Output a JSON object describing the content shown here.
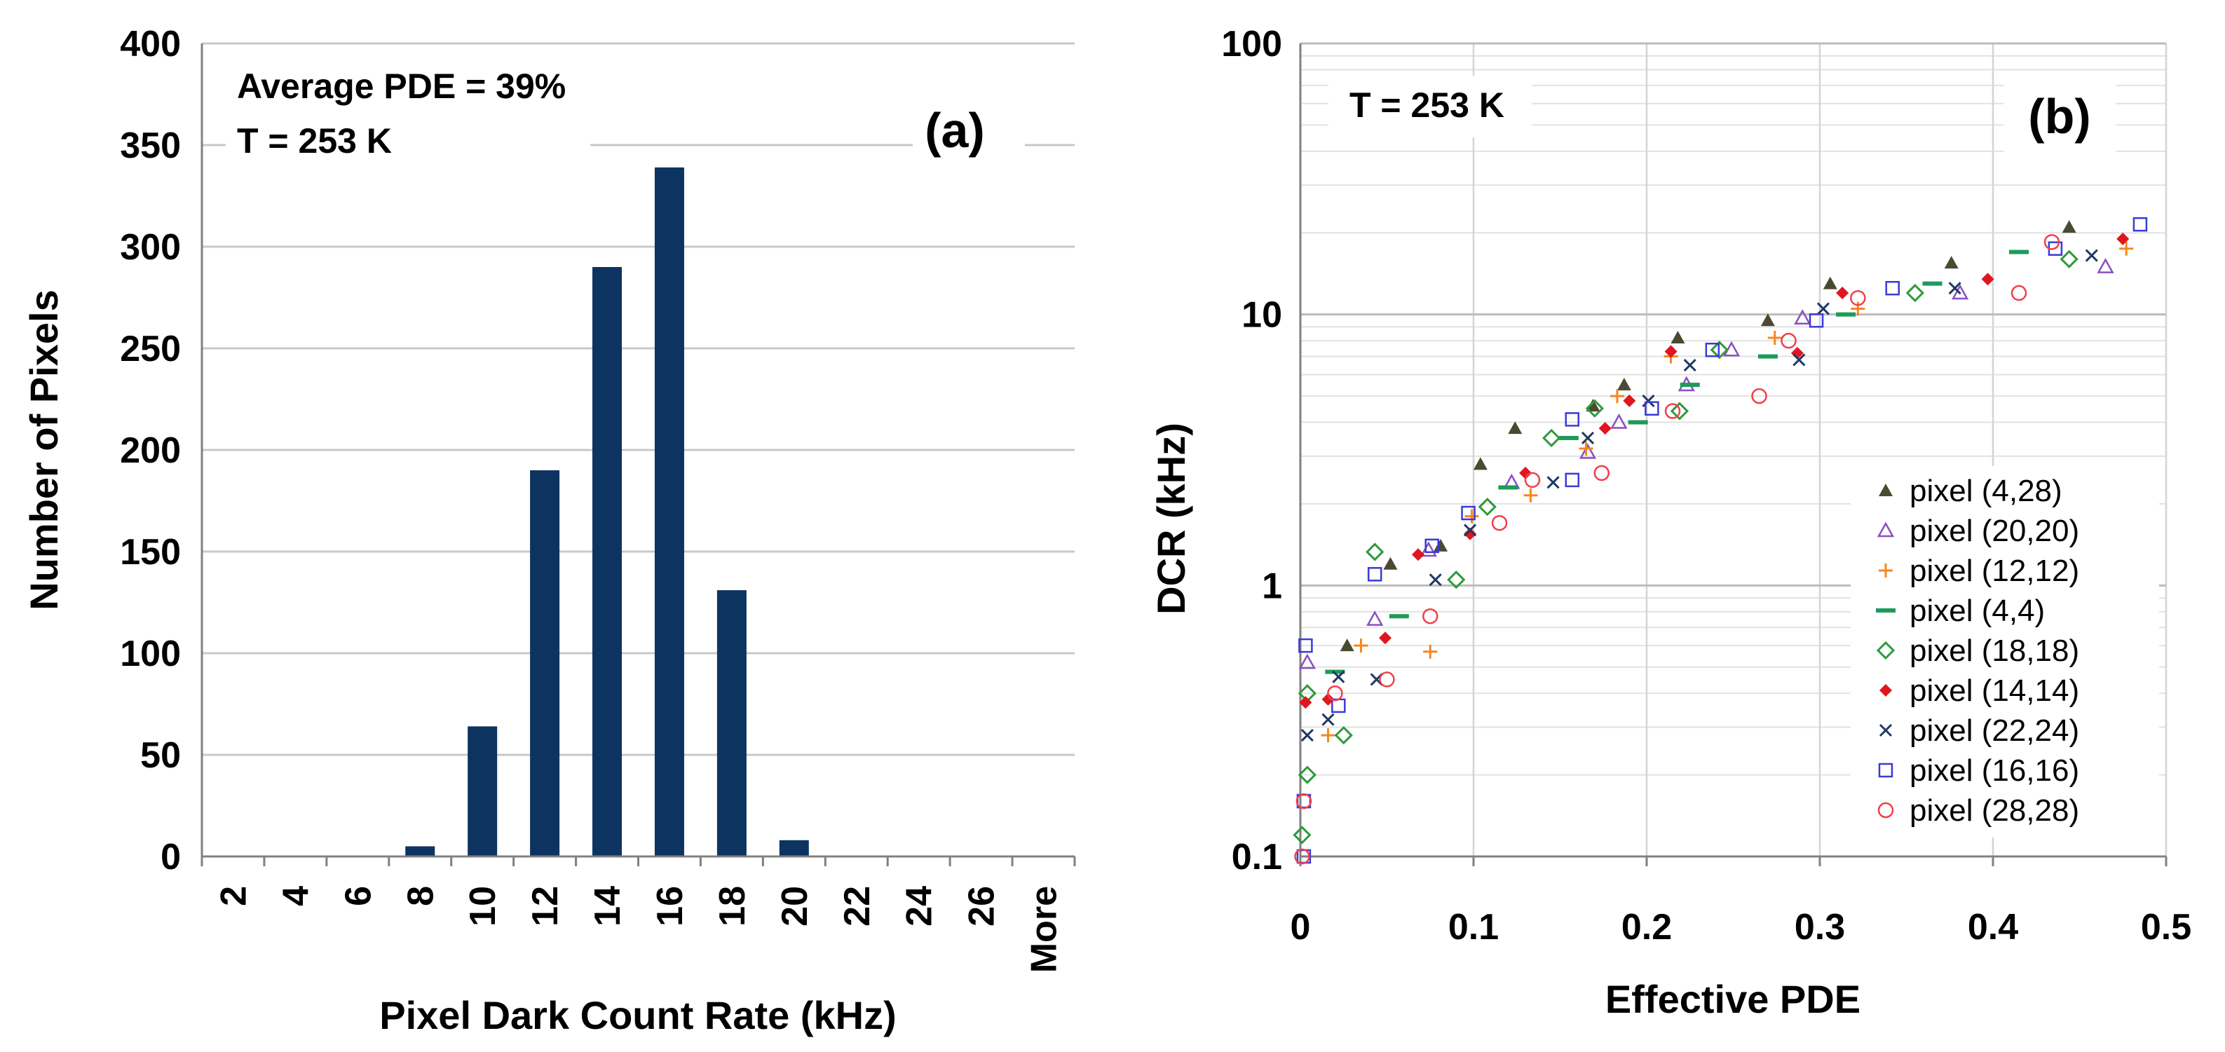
{
  "colors": {
    "bar": "#0d3361",
    "grid": "#c8c8c8",
    "axis": "#808080",
    "text": "#000000"
  },
  "chart_data": [
    {
      "type": "bar",
      "panel_label": "(a)",
      "xlabel": "Pixel Dark Count Rate (kHz)",
      "ylabel": "Number of Pixels",
      "ylim": [
        0,
        400
      ],
      "y_ticks": [
        "0",
        "50",
        "100",
        "150",
        "200",
        "250",
        "300",
        "350",
        "400"
      ],
      "y_tick_values": [
        0,
        50,
        100,
        150,
        200,
        250,
        300,
        350,
        400
      ],
      "categories": [
        "2",
        "4",
        "6",
        "8",
        "10",
        "12",
        "14",
        "16",
        "18",
        "20",
        "22",
        "24",
        "26",
        "More"
      ],
      "values": [
        0,
        0,
        0,
        5,
        64,
        190,
        290,
        339,
        131,
        8,
        0,
        0,
        0,
        0
      ],
      "grid": true,
      "annotations": [
        "Average PDE = 39%",
        "T = 253 K"
      ]
    },
    {
      "type": "scatter",
      "panel_label": "(b)",
      "xlabel": "Effective PDE",
      "ylabel": "DCR (kHz)",
      "yscale": "log",
      "xlim": [
        0,
        0.5
      ],
      "ylim": [
        0.1,
        100
      ],
      "x_ticks": [
        "0",
        "0.1",
        "0.2",
        "0.3",
        "0.4",
        "0.5"
      ],
      "x_tick_values": [
        0,
        0.1,
        0.2,
        0.3,
        0.4,
        0.5
      ],
      "y_ticks": [
        "0.1",
        "1",
        "10",
        "100"
      ],
      "y_tick_values": [
        0.1,
        1,
        10,
        100
      ],
      "grid": true,
      "legend_position": "bottom-right",
      "annotations": [
        "T = 253 K"
      ],
      "series": [
        {
          "name": "pixel (4,28)",
          "marker": "triangle",
          "color": "#4a4a32",
          "x": [
            0.027,
            0.052,
            0.081,
            0.104,
            0.124,
            0.169,
            0.187,
            0.218,
            0.27,
            0.306,
            0.376,
            0.444
          ],
          "y": [
            0.6,
            1.2,
            1.4,
            2.8,
            3.8,
            4.6,
            5.5,
            8.2,
            9.5,
            13.0,
            15.5,
            21.0
          ]
        },
        {
          "name": "pixel (20,20)",
          "marker": "triangle-open",
          "color": "#8a4fc0",
          "x": [
            0.004,
            0.043,
            0.074,
            0.122,
            0.166,
            0.184,
            0.223,
            0.249,
            0.29,
            0.381,
            0.465
          ],
          "y": [
            0.52,
            0.75,
            1.35,
            2.4,
            3.1,
            4.0,
            5.5,
            7.4,
            9.7,
            12.0,
            15.0
          ]
        },
        {
          "name": "pixel (12,12)",
          "marker": "plus",
          "color": "#f4871f",
          "x": [
            0.016,
            0.035,
            0.075,
            0.099,
            0.133,
            0.165,
            0.183,
            0.214,
            0.274,
            0.322,
            0.477
          ],
          "y": [
            0.28,
            0.6,
            0.57,
            1.8,
            2.15,
            3.2,
            5.0,
            7.0,
            8.2,
            10.5,
            17.5
          ]
        },
        {
          "name": "pixel (4,4)",
          "marker": "dash",
          "color": "#1e9a5a",
          "x": [
            0.02,
            0.057,
            0.12,
            0.155,
            0.195,
            0.225,
            0.27,
            0.315,
            0.365,
            0.415
          ],
          "y": [
            0.48,
            0.77,
            2.3,
            3.5,
            4.0,
            5.5,
            7.0,
            10.0,
            13.0,
            17.0
          ]
        },
        {
          "name": "pixel (18,18)",
          "marker": "diamond-open",
          "color": "#2e9a3c",
          "x": [
            0.001,
            0.004,
            0.004,
            0.025,
            0.043,
            0.09,
            0.108,
            0.145,
            0.17,
            0.219,
            0.242,
            0.355,
            0.444
          ],
          "y": [
            0.12,
            0.2,
            0.4,
            0.28,
            1.33,
            1.05,
            1.95,
            3.5,
            4.5,
            4.4,
            7.4,
            12.0,
            16.0
          ]
        },
        {
          "name": "pixel (14,14)",
          "marker": "diamond",
          "color": "#e0161e",
          "x": [
            0.003,
            0.016,
            0.049,
            0.068,
            0.098,
            0.13,
            0.176,
            0.19,
            0.214,
            0.287,
            0.313,
            0.397,
            0.475
          ],
          "y": [
            0.37,
            0.38,
            0.64,
            1.3,
            1.55,
            2.6,
            3.8,
            4.8,
            7.3,
            7.2,
            12.0,
            13.5,
            19.0
          ]
        },
        {
          "name": "pixel (22,24)",
          "marker": "x",
          "color": "#1f3864",
          "x": [
            0.004,
            0.016,
            0.022,
            0.044,
            0.078,
            0.098,
            0.146,
            0.166,
            0.201,
            0.225,
            0.288,
            0.302,
            0.378,
            0.457
          ],
          "y": [
            0.28,
            0.32,
            0.46,
            0.45,
            1.05,
            1.6,
            2.4,
            3.5,
            4.8,
            6.5,
            6.8,
            10.5,
            12.5,
            16.5
          ]
        },
        {
          "name": "pixel (16,16)",
          "marker": "square-open",
          "color": "#3a3ad8",
          "x": [
            0.002,
            0.002,
            0.003,
            0.022,
            0.043,
            0.076,
            0.097,
            0.157,
            0.157,
            0.203,
            0.238,
            0.298,
            0.342,
            0.436,
            0.485
          ],
          "y": [
            0.1,
            0.16,
            0.6,
            0.36,
            1.1,
            1.4,
            1.85,
            4.1,
            2.45,
            4.5,
            7.4,
            9.5,
            12.5,
            17.5,
            21.5
          ]
        },
        {
          "name": "pixel (28,28)",
          "marker": "circle-open",
          "color": "#f0404a",
          "x": [
            0.001,
            0.002,
            0.02,
            0.05,
            0.075,
            0.115,
            0.134,
            0.174,
            0.215,
            0.265,
            0.282,
            0.322,
            0.415,
            0.434
          ],
          "y": [
            0.1,
            0.16,
            0.4,
            0.45,
            0.77,
            1.7,
            2.45,
            2.6,
            4.4,
            5.0,
            8.0,
            11.5,
            12.0,
            18.5
          ]
        }
      ]
    }
  ]
}
